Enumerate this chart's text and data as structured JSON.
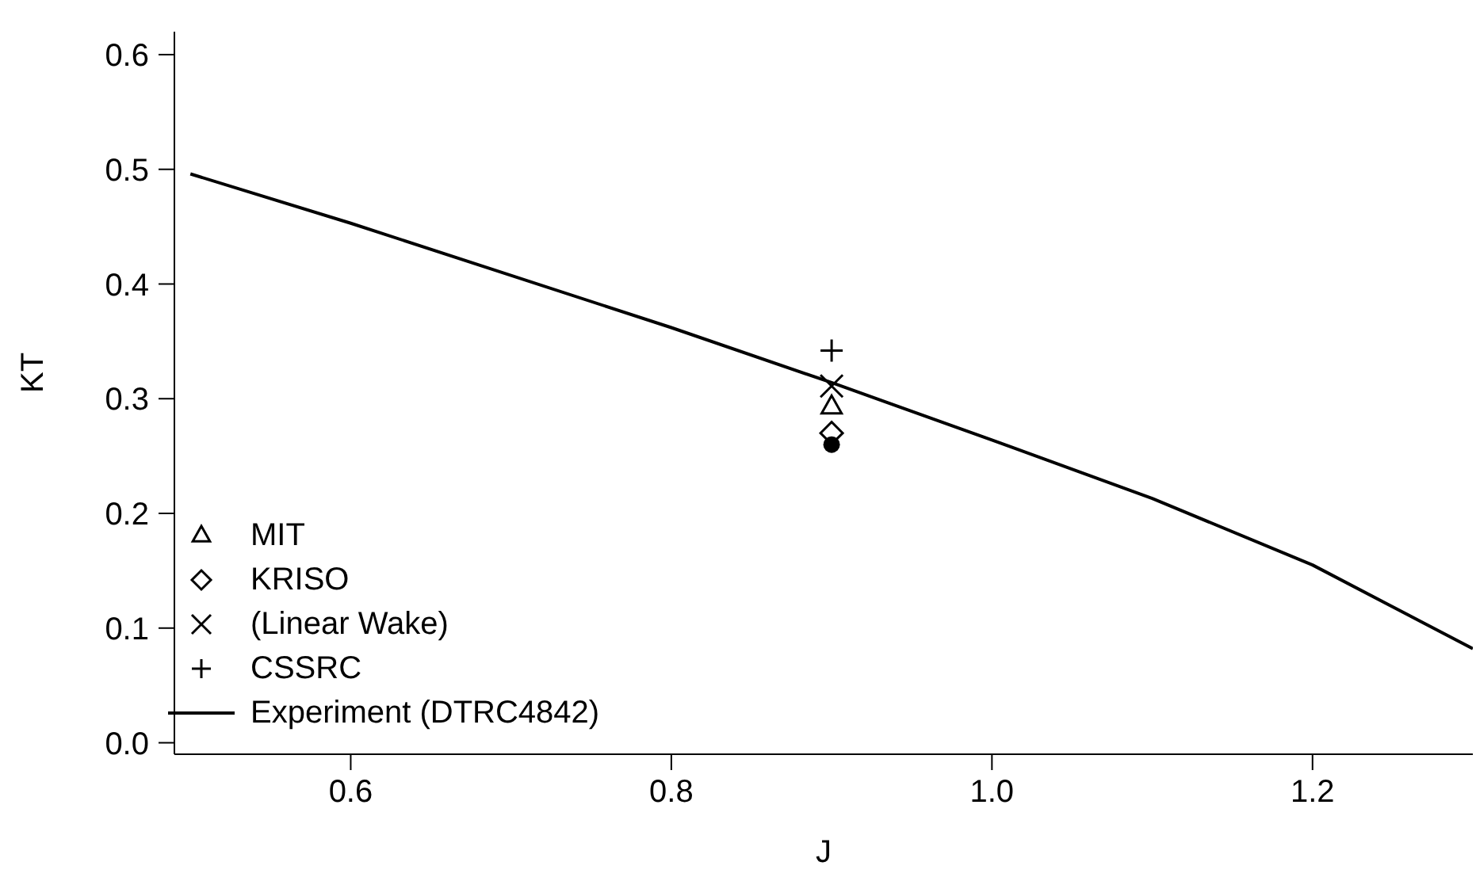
{
  "chart_data": {
    "type": "scatter",
    "xlabel": "J",
    "ylabel": "KT",
    "xlim": [
      0.49,
      1.3
    ],
    "ylim": [
      -0.01,
      0.62
    ],
    "xticks": [
      0.6,
      0.8,
      {
        "value": 1.0,
        "label": "1.0"
      },
      1.2
    ],
    "yticks": [
      {
        "value": 0,
        "label": "0.0"
      },
      0.1,
      0.2,
      0.3,
      0.4,
      0.5,
      0.6
    ],
    "legend": "bottom left",
    "grid": false,
    "series": [
      {
        "name": "MIT",
        "marker": "triangle",
        "color": "#000000",
        "x": [
          0.9
        ],
        "values": [
          0.293
        ]
      },
      {
        "name": "KRISO",
        "marker": "diamond",
        "color": "#000000",
        "x": [
          0.9
        ],
        "values": [
          0.27
        ]
      },
      {
        "marker": "circle",
        "color": "#000000",
        "x": [
          0.9
        ],
        "values": [
          0.26
        ]
      },
      {
        "name": "(Linear Wake)",
        "marker": "x",
        "color": "#000000",
        "x": [
          0.9
        ],
        "values": [
          0.311
        ]
      },
      {
        "name": "CSSRC",
        "marker": "cross",
        "color": "#000000",
        "x": [
          0.9
        ],
        "values": [
          0.342
        ]
      },
      {
        "name": "Experiment (DTRC4842)",
        "type": "line",
        "marker": "none",
        "line_style": "solid",
        "color": "#000000",
        "x": [
          0.5,
          0.6,
          0.8,
          0.9,
          1.0,
          1.1,
          1.2,
          1.3
        ],
        "values": [
          0.496,
          0.453,
          0.362,
          0.314,
          0.264,
          0.213,
          0.155,
          0.082
        ]
      }
    ]
  }
}
